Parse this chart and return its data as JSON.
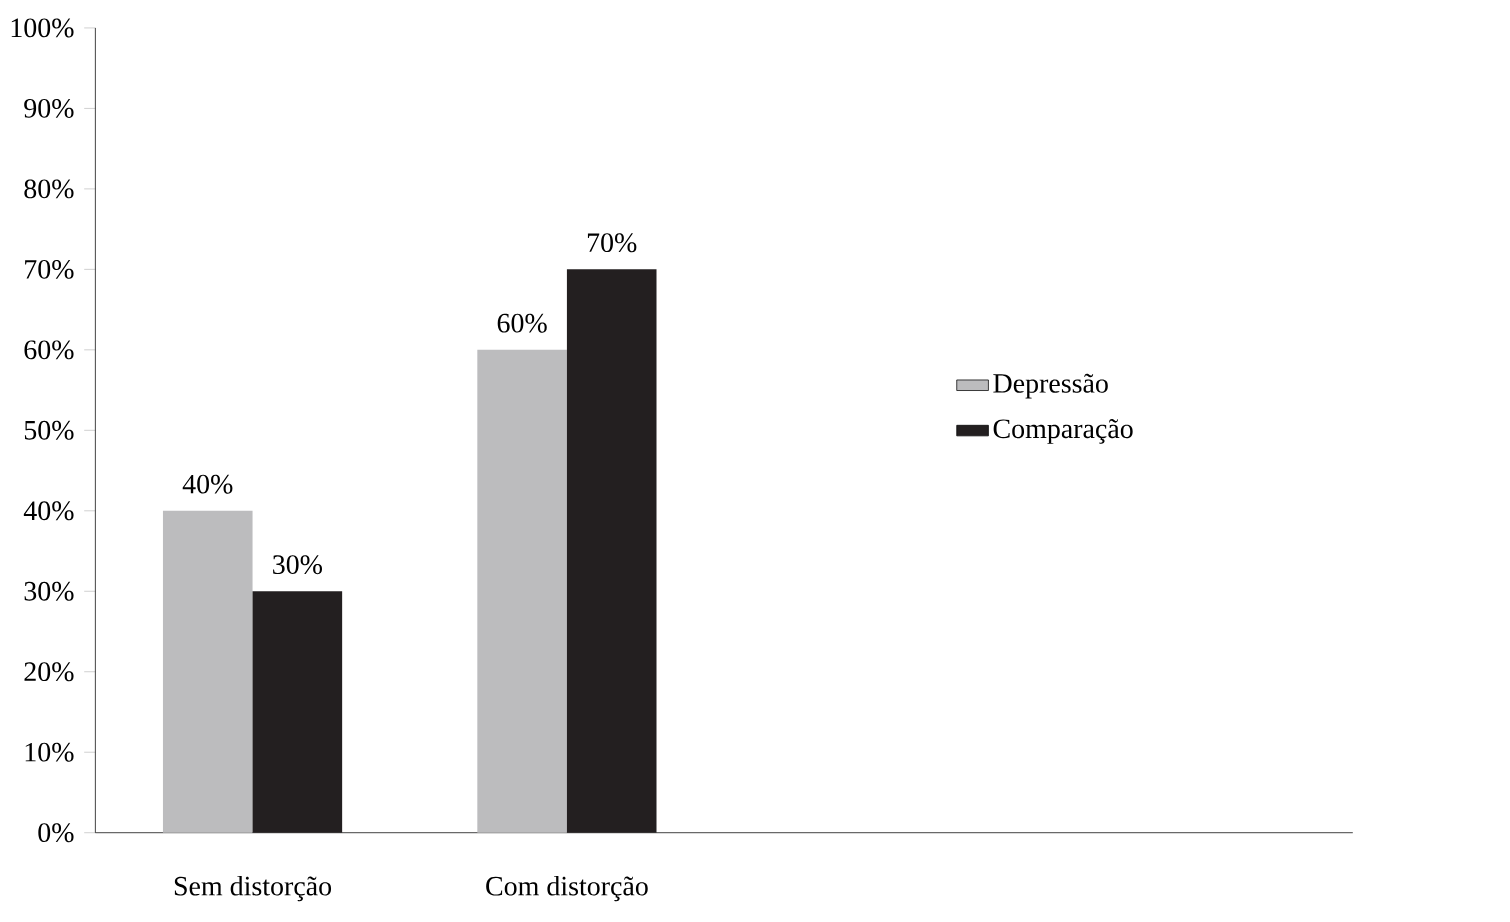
{
  "chart_data": {
    "type": "bar",
    "categories": [
      "Sem distorção",
      "Com distorção",
      null,
      null
    ],
    "series": [
      {
        "name": "Depressão",
        "color": "#bcbcbe",
        "values": [
          40,
          60,
          null,
          null
        ],
        "value_labels": [
          "40%",
          "60%",
          null,
          null
        ]
      },
      {
        "name": "Comparação",
        "color": "#231f20",
        "values": [
          30,
          70,
          null,
          null
        ],
        "value_labels": [
          "30%",
          "70%",
          null,
          null
        ]
      }
    ],
    "ylim": [
      0,
      100
    ],
    "yticks": [
      {
        "value": 0,
        "label": "0%"
      },
      {
        "value": 10,
        "label": "10%"
      },
      {
        "value": 20,
        "label": "20%"
      },
      {
        "value": 30,
        "label": "30%"
      },
      {
        "value": 40,
        "label": "40%"
      },
      {
        "value": 50,
        "label": "50%"
      },
      {
        "value": 60,
        "label": "60%"
      },
      {
        "value": 70,
        "label": "70%"
      },
      {
        "value": 80,
        "label": "80%"
      },
      {
        "value": 90,
        "label": "90%"
      },
      {
        "value": 100,
        "label": "100%"
      }
    ],
    "grid": false,
    "legend": "right"
  }
}
